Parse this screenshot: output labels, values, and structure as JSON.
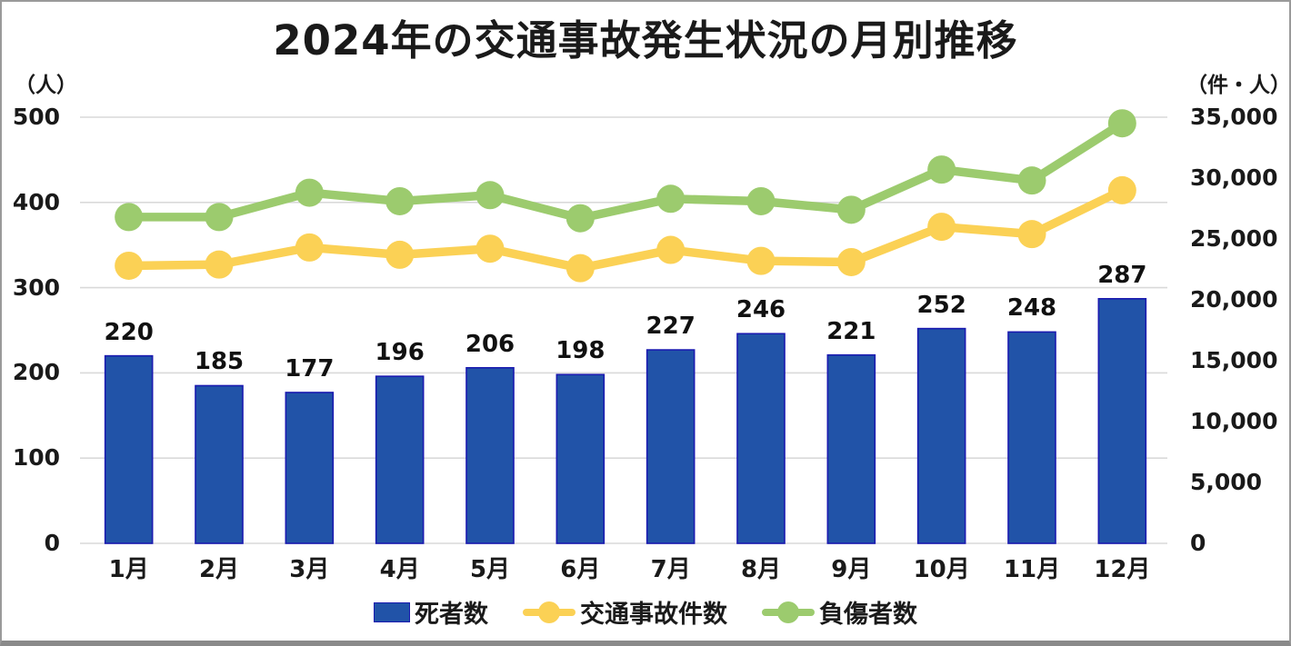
{
  "chart_data": {
    "type": "combo-bar-line",
    "title": "2024年の交通事故発生状況の月別推移",
    "categories": [
      "1月",
      "2月",
      "3月",
      "4月",
      "5月",
      "6月",
      "7月",
      "8月",
      "9月",
      "10月",
      "11月",
      "12月"
    ],
    "left_axis": {
      "unit": "（人）",
      "min": 0,
      "max": 500,
      "tick_step": 100,
      "tick_labels": [
        "0",
        "100",
        "200",
        "300",
        "400",
        "500"
      ]
    },
    "right_axis": {
      "unit": "（件・人）",
      "min": 0,
      "max": 35000,
      "tick_step": 5000,
      "tick_labels": [
        "0",
        "5,000",
        "10,000",
        "15,000",
        "20,000",
        "25,000",
        "30,000",
        "35,000"
      ]
    },
    "grid": true,
    "gridline_color": "#d9d9d9",
    "legend_position": "bottom-center",
    "series": [
      {
        "name": "死者数",
        "type": "bar",
        "axis": "left",
        "color": "#2153a8",
        "border_color": "#1a1ab0",
        "data_labels": true,
        "values": [
          220,
          185,
          177,
          196,
          206,
          198,
          227,
          246,
          221,
          252,
          248,
          287
        ]
      },
      {
        "name": "交通事故件数",
        "type": "line",
        "axis": "right",
        "color": "#fbd155",
        "data_labels": false,
        "values": [
          22800,
          22900,
          24300,
          23700,
          24200,
          22600,
          24100,
          23200,
          23100,
          26000,
          25400,
          29000
        ]
      },
      {
        "name": "負傷者数",
        "type": "line",
        "axis": "right",
        "color": "#9ccb6e",
        "data_labels": false,
        "values": [
          26800,
          26800,
          28800,
          28100,
          28600,
          26700,
          28300,
          28100,
          27400,
          30700,
          29800,
          34500
        ]
      }
    ]
  }
}
